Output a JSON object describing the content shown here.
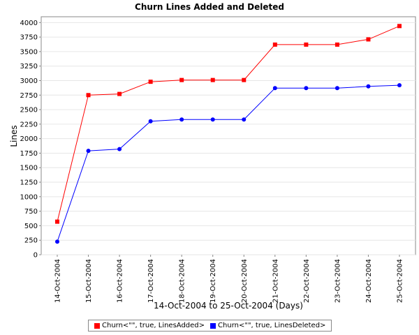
{
  "chart_data": {
    "type": "line",
    "title": "Churn Lines Added and Deleted",
    "xlabel": "14-Oct-2004 to 25-Oct-2004 (Days)",
    "ylabel": "Lines",
    "categories": [
      "14-Oct-2004",
      "15-Oct-2004",
      "16-Oct-2004",
      "17-Oct-2004",
      "18-Oct-2004",
      "19-Oct-2004",
      "20-Oct-2004",
      "21-Oct-2004",
      "22-Oct-2004",
      "23-Oct-2004",
      "24-Oct-2004",
      "25-Oct-2004"
    ],
    "ylim": [
      0,
      4100
    ],
    "yticks": [
      0,
      250,
      500,
      750,
      1000,
      1250,
      1500,
      1750,
      2000,
      2250,
      2500,
      2750,
      3000,
      3250,
      3500,
      3750,
      4000
    ],
    "grid": true,
    "legend_position": "bottom",
    "series": [
      {
        "name": "Churn<\"\", true, LinesAdded>",
        "color": "#ff0000",
        "marker": "square",
        "values": [
          570,
          2750,
          2770,
          2980,
          3010,
          3010,
          3010,
          3620,
          3620,
          3620,
          3710,
          3940
        ]
      },
      {
        "name": "Churn<\"\", true, LinesDeleted>",
        "color": "#0000ff",
        "marker": "circle",
        "values": [
          225,
          1790,
          1820,
          2300,
          2330,
          2330,
          2330,
          2870,
          2870,
          2870,
          2900,
          2920
        ]
      }
    ]
  }
}
